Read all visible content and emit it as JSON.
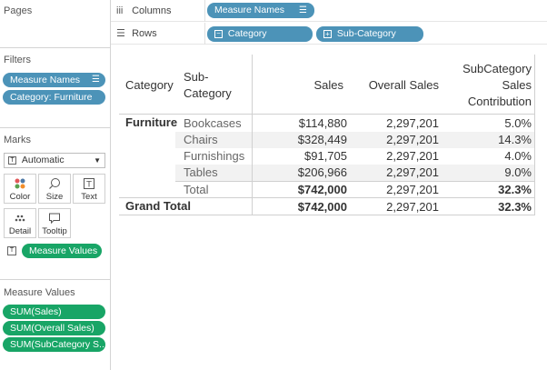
{
  "left_panel": {
    "pages_title": "Pages",
    "filters_title": "Filters",
    "filters": [
      "Measure Names",
      "Category: Furniture"
    ],
    "marks_title": "Marks",
    "mark_type": "Automatic",
    "mark_buttons": [
      "Color",
      "Size",
      "Text",
      "Detail",
      "Tooltip"
    ],
    "measure_values_pill": "Measure Values",
    "measure_values_title": "Measure Values",
    "measures": [
      "SUM(Sales)",
      "SUM(Overall Sales)",
      "SUM(SubCategory S.."
    ]
  },
  "shelves": {
    "columns_label": "Columns",
    "columns_pill": "Measure Names",
    "rows_label": "Rows",
    "rows_pills": [
      "Category",
      "Sub-Category"
    ]
  },
  "table": {
    "headers": {
      "category": "Category",
      "subcategory": [
        "Sub-",
        "Category"
      ],
      "sales": "Sales",
      "overall": "Overall Sales",
      "contrib": [
        "SubCategory",
        "Sales",
        "Contribution"
      ]
    },
    "category": "Furniture",
    "rows": [
      {
        "sub": "Bookcases",
        "sales": "$114,880",
        "overall": "2,297,201",
        "contrib": "5.0%"
      },
      {
        "sub": "Chairs",
        "sales": "$328,449",
        "overall": "2,297,201",
        "contrib": "14.3%"
      },
      {
        "sub": "Furnishings",
        "sales": "$91,705",
        "overall": "2,297,201",
        "contrib": "4.0%"
      },
      {
        "sub": "Tables",
        "sales": "$206,966",
        "overall": "2,297,201",
        "contrib": "9.0%"
      }
    ],
    "total": {
      "label": "Total",
      "sales": "$742,000",
      "overall": "2,297,201",
      "contrib": "32.3%"
    },
    "grand_total": {
      "label": "Grand Total",
      "sales": "$742,000",
      "overall": "2,297,201",
      "contrib": "32.3%"
    }
  },
  "colors": {
    "blue_pill": "#4c93b8",
    "green_pill": "#18a566"
  }
}
